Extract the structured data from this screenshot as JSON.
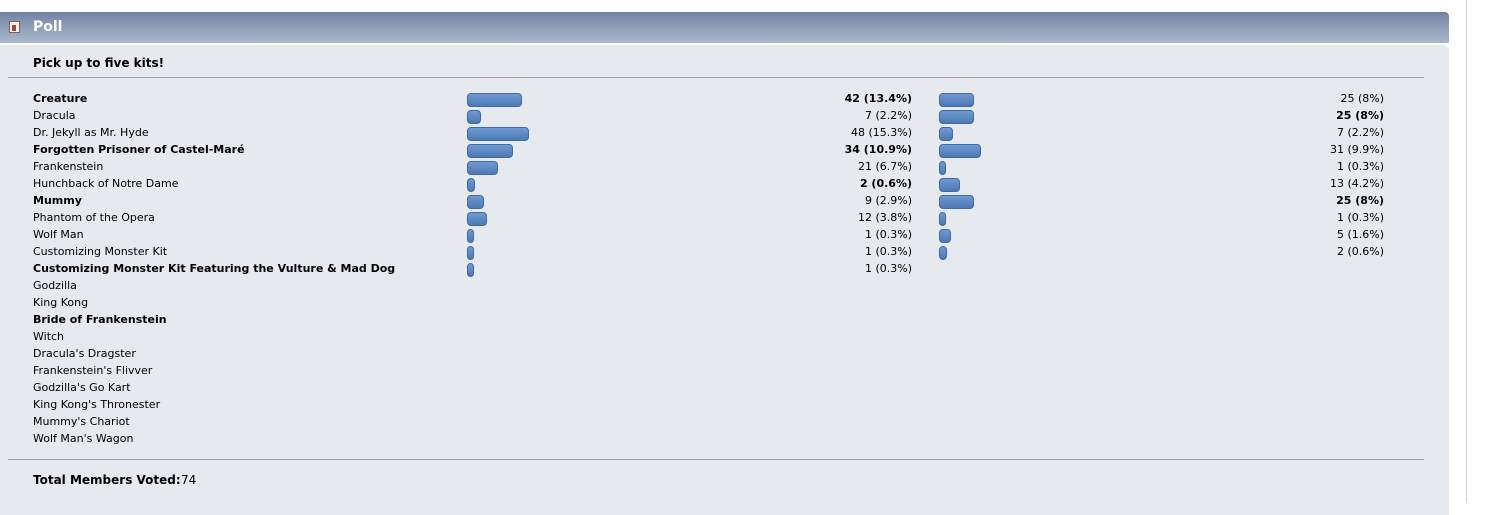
{
  "header": {
    "title": "Poll"
  },
  "poll": {
    "question": "Pick up to five kits!",
    "options": [
      {
        "name": "Creature",
        "bold": true
      },
      {
        "name": "Dracula",
        "bold": false
      },
      {
        "name": "Dr. Jekyll as Mr. Hyde",
        "bold": false
      },
      {
        "name": "Forgotten Prisoner of Castel-Maré",
        "bold": true
      },
      {
        "name": "Frankenstein",
        "bold": false
      },
      {
        "name": "Hunchback of Notre Dame",
        "bold": false
      },
      {
        "name": "Mummy",
        "bold": true
      },
      {
        "name": "Phantom of the Opera",
        "bold": false
      },
      {
        "name": "Wolf Man",
        "bold": false
      },
      {
        "name": "Customizing Monster Kit",
        "bold": false
      },
      {
        "name": "Customizing Monster Kit Featuring the Vulture & Mad Dog",
        "bold": true
      },
      {
        "name": "Godzilla",
        "bold": false
      },
      {
        "name": "King Kong",
        "bold": false
      },
      {
        "name": "Bride of Frankenstein",
        "bold": true
      },
      {
        "name": "Witch",
        "bold": false
      },
      {
        "name": "Dracula's Dragster",
        "bold": false
      },
      {
        "name": "Frankenstein's Flivver",
        "bold": false
      },
      {
        "name": "Godzilla's Go Kart",
        "bold": false
      },
      {
        "name": "King Kong's Thronester",
        "bold": false
      },
      {
        "name": "Mummy's Chariot",
        "bold": false
      },
      {
        "name": "Wolf Man's Wagon",
        "bold": false
      }
    ],
    "results_left": [
      {
        "votes": 42,
        "label": "42 (13.4%)",
        "bold": true
      },
      {
        "votes": 7,
        "label": "7 (2.2%)",
        "bold": false
      },
      {
        "votes": 48,
        "label": "48 (15.3%)",
        "bold": false
      },
      {
        "votes": 34,
        "label": "34 (10.9%)",
        "bold": true
      },
      {
        "votes": 21,
        "label": "21 (6.7%)",
        "bold": false
      },
      {
        "votes": 2,
        "label": "2 (0.6%)",
        "bold": true
      },
      {
        "votes": 9,
        "label": "9 (2.9%)",
        "bold": false
      },
      {
        "votes": 12,
        "label": "12 (3.8%)",
        "bold": false
      },
      {
        "votes": 1,
        "label": "1 (0.3%)",
        "bold": false
      },
      {
        "votes": 1,
        "label": "1 (0.3%)",
        "bold": false
      },
      {
        "votes": 1,
        "label": "1 (0.3%)",
        "bold": false
      }
    ],
    "results_right": [
      {
        "votes": 25,
        "label": "25 (8%)",
        "bold": false
      },
      {
        "votes": 25,
        "label": "25 (8%)",
        "bold": true
      },
      {
        "votes": 7,
        "label": "7 (2.2%)",
        "bold": false
      },
      {
        "votes": 31,
        "label": "31 (9.9%)",
        "bold": false
      },
      {
        "votes": 1,
        "label": "1 (0.3%)",
        "bold": false
      },
      {
        "votes": 13,
        "label": "13 (4.2%)",
        "bold": false
      },
      {
        "votes": 25,
        "label": "25 (8%)",
        "bold": true
      },
      {
        "votes": 1,
        "label": "1 (0.3%)",
        "bold": false
      },
      {
        "votes": 5,
        "label": "5 (1.6%)",
        "bold": false
      },
      {
        "votes": 2,
        "label": "2 (0.6%)",
        "bold": false
      }
    ]
  },
  "footer": {
    "total_label": "Total Members Voted:",
    "total": 74
  }
}
